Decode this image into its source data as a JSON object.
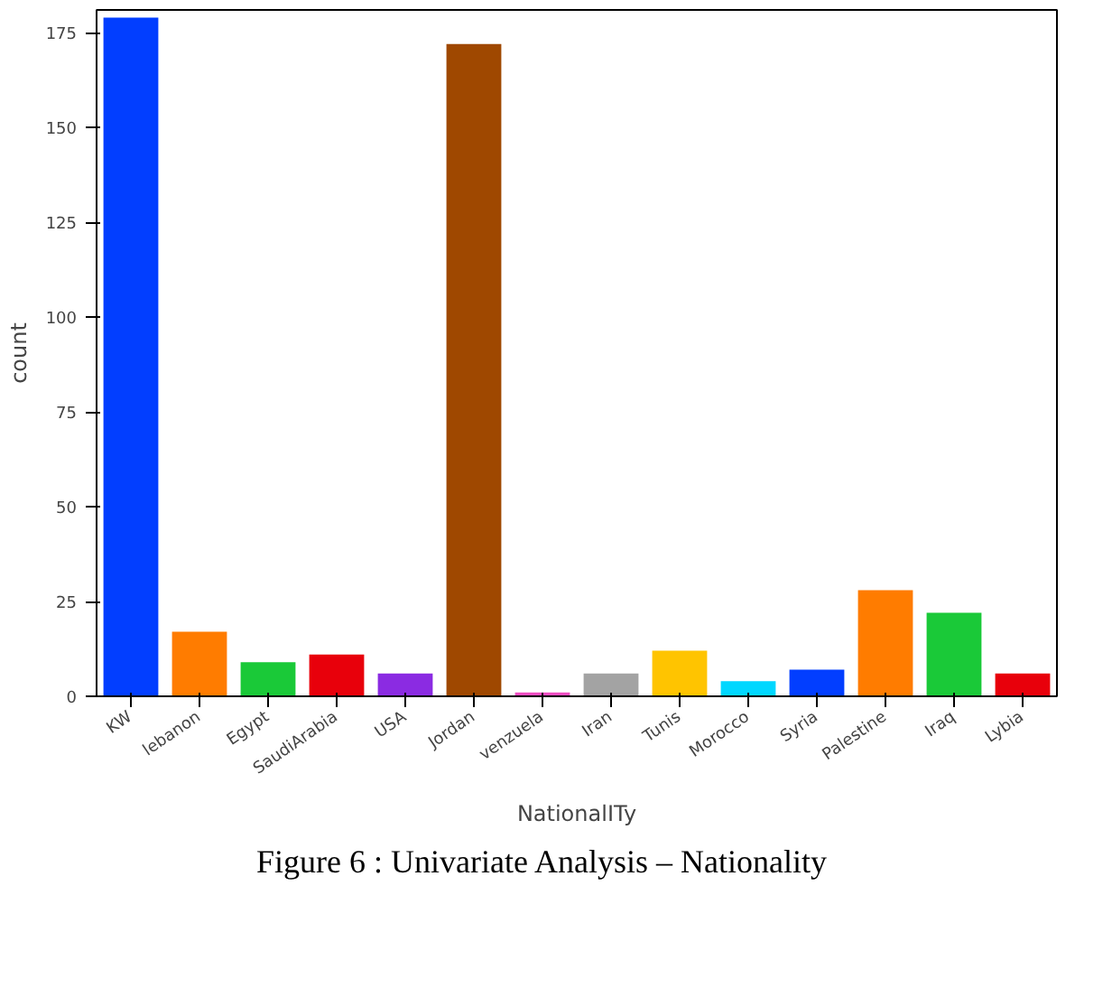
{
  "chart_data": {
    "type": "bar",
    "xlabel": "NationalITy",
    "ylabel": "count",
    "categories": [
      "KW",
      "lebanon",
      "Egypt",
      "SaudiArabia",
      "USA",
      "Jordan",
      "venzuela",
      "Iran",
      "Tunis",
      "Morocco",
      "Syria",
      "Palestine",
      "Iraq",
      "Lybia"
    ],
    "values": [
      179,
      17,
      9,
      11,
      6,
      172,
      1,
      6,
      12,
      4,
      7,
      28,
      22,
      6
    ],
    "colors": [
      "#023eff",
      "#ff7c00",
      "#1ac938",
      "#e8000b",
      "#8b2be2",
      "#9f4800",
      "#f14cc1",
      "#a3a3a3",
      "#ffc400",
      "#00d7ff",
      "#023eff",
      "#ff7c00",
      "#1ac938",
      "#e8000b"
    ],
    "ylim": [
      0,
      181
    ],
    "yticks": [
      0,
      25,
      50,
      75,
      100,
      125,
      150,
      175
    ],
    "grid": false,
    "annotations": [
      "Figure 6 : Univariate Analysis – Nationality"
    ]
  }
}
